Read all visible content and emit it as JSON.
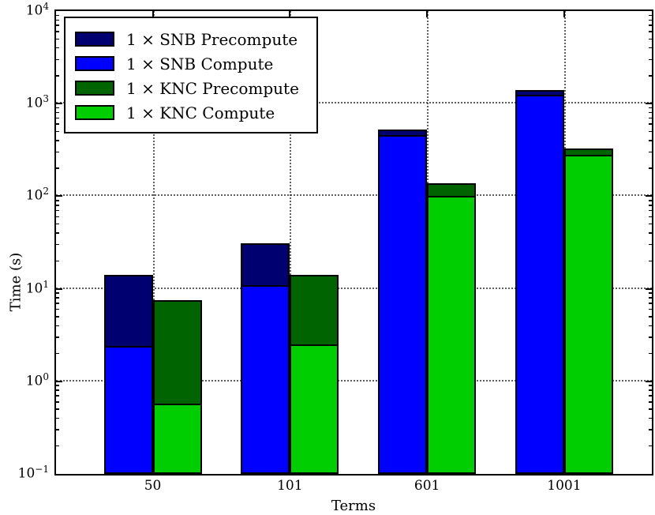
{
  "chart_data": {
    "type": "bar",
    "variant": "grouped-stacked",
    "title": "",
    "xlabel": "Terms",
    "ylabel": "Time (s)",
    "y_scale": "log",
    "ylim": [
      0.1,
      10000
    ],
    "y_tick_exponents": [
      4,
      3,
      2,
      1,
      0,
      -1
    ],
    "grid": "dotted major gridlines, both axes",
    "legend_position": "upper left",
    "categories": [
      "50",
      "101",
      "601",
      "1001"
    ],
    "series": [
      {
        "name": "1 × SNB Precompute",
        "color": "#000070",
        "stack": "SNB",
        "segment": "precompute",
        "values": [
          11.6,
          20,
          70,
          150
        ]
      },
      {
        "name": "1 × SNB Compute",
        "color": "#0000ff",
        "stack": "SNB",
        "segment": "compute",
        "values": [
          2.4,
          11,
          460,
          1250
        ]
      },
      {
        "name": "1 × KNC Precompute",
        "color": "#006400",
        "stack": "KNC",
        "segment": "precompute",
        "values": [
          6.9,
          11.5,
          37,
          50
        ]
      },
      {
        "name": "1 × KNC Compute",
        "color": "#00ce00",
        "stack": "KNC",
        "segment": "compute",
        "values": [
          0.57,
          2.5,
          100,
          280
        ]
      }
    ],
    "stack_totals": {
      "SNB": [
        14,
        31,
        530,
        1400
      ],
      "KNC": [
        7.5,
        14,
        137,
        330
      ]
    }
  }
}
